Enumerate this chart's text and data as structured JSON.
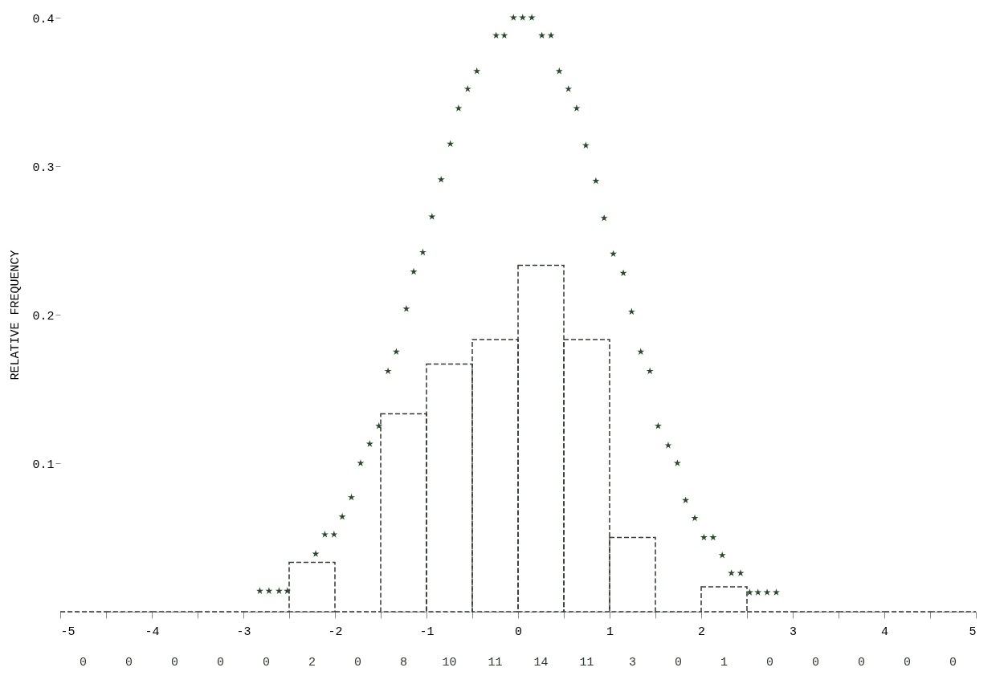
{
  "chart_data": {
    "type": "histogram",
    "ylabel": "RELATIVE FREQUENCY",
    "xlim": [
      -5,
      5
    ],
    "ylim": [
      0,
      0.4
    ],
    "annotations": [
      "0",
      "0",
      "0",
      "0",
      "0",
      "2",
      "0",
      "8",
      "10",
      "11",
      "14",
      "11",
      "3",
      "0",
      "1",
      "0",
      "0",
      "0",
      "0",
      "0"
    ],
    "xticks": [
      -5,
      {
        "value": -4.5,
        "label": null
      },
      -4,
      {
        "value": -3.5,
        "label": null
      },
      -3,
      {
        "value": -2.5,
        "label": null
      },
      -2,
      {
        "value": -1.5,
        "label": null
      },
      -1,
      {
        "value": -0.5,
        "label": null
      },
      0,
      {
        "value": 0.5,
        "label": null
      },
      1,
      {
        "value": 1.5,
        "label": null
      },
      2,
      {
        "value": 2.5,
        "label": null
      },
      3,
      {
        "value": 3.5,
        "label": null
      },
      4,
      {
        "value": 4.5,
        "label": null
      },
      5
    ],
    "yticks": [
      0.1,
      0.2,
      0.3,
      0.4
    ],
    "grid": false,
    "series": [
      {
        "color": "#2f3a2f",
        "line_style": "dashed",
        "bins": [
          -5,
          -4.5,
          -4,
          -3.5,
          -3,
          -2.5,
          -2,
          -1.5,
          -1,
          -0.5,
          0,
          0.5,
          1,
          1.5,
          2,
          2.5,
          3,
          3.5,
          4,
          4.5,
          5
        ],
        "values": [
          0,
          0,
          0,
          0,
          0,
          0.0333,
          0,
          0.1333,
          0.1667,
          0.1833,
          0.2333,
          0.1833,
          0.05,
          0,
          0.0167,
          0,
          0,
          0,
          0,
          0
        ]
      },
      {
        "type": "scatter",
        "color": "#2a4a2a",
        "marker": "star",
        "x": [
          -2.82,
          -2.72,
          -2.61,
          -2.52,
          -2.21,
          -2.11,
          -2.01,
          -1.92,
          -1.82,
          -1.72,
          -1.62,
          -1.52,
          -1.42,
          -1.33,
          -1.22,
          -1.14,
          -1.04,
          -0.94,
          -0.84,
          -0.74,
          -0.65,
          -0.55,
          -0.45,
          -0.24,
          -0.15,
          -0.05,
          0.05,
          0.15,
          0.26,
          0.36,
          0.45,
          0.55,
          0.64,
          0.74,
          0.85,
          0.94,
          1.04,
          1.15,
          1.24,
          1.34,
          1.44,
          1.53,
          1.64,
          1.74,
          1.83,
          1.93,
          2.03,
          2.13,
          2.23,
          2.33,
          2.43,
          2.53,
          2.62,
          2.72,
          2.82
        ],
        "values": [
          0.014,
          0.014,
          0.014,
          0.014,
          0.039,
          0.052,
          0.052,
          0.064,
          0.077,
          0.1,
          0.113,
          0.125,
          0.162,
          0.175,
          0.204,
          0.229,
          0.242,
          0.266,
          0.291,
          0.315,
          0.339,
          0.352,
          0.364,
          0.388,
          0.388,
          0.4,
          0.4,
          0.4,
          0.388,
          0.388,
          0.364,
          0.352,
          0.339,
          0.314,
          0.29,
          0.265,
          0.241,
          0.228,
          0.202,
          0.175,
          0.162,
          0.125,
          0.112,
          0.1,
          0.075,
          0.063,
          0.05,
          0.05,
          0.038,
          0.026,
          0.026,
          0.013,
          0.013,
          0.013,
          0.013
        ]
      }
    ]
  }
}
